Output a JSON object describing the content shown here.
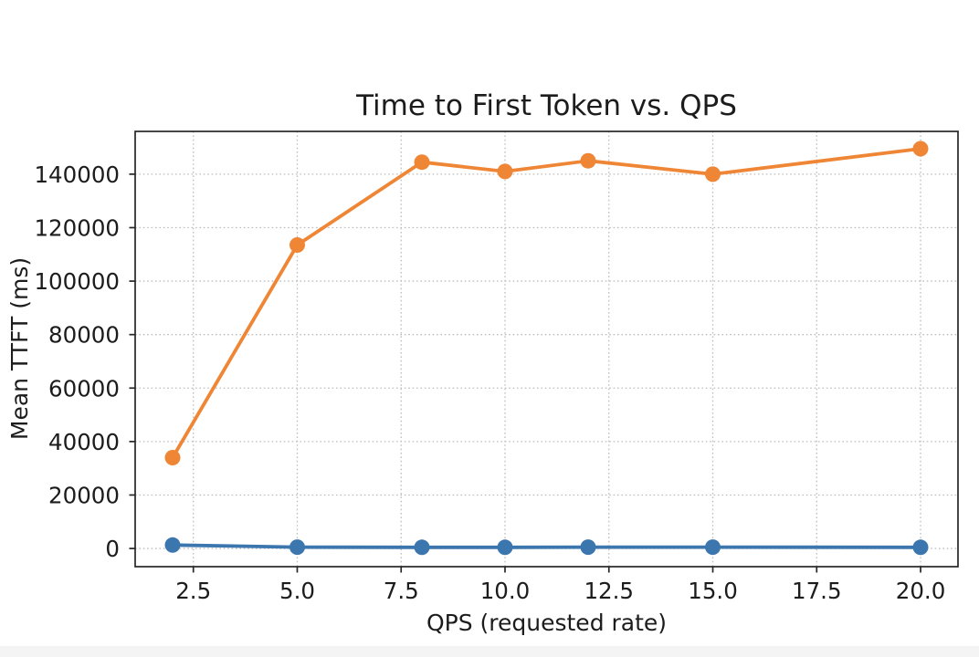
{
  "window": {
    "background": "#ffffff",
    "bottom_strip_color": "#f4f4f5"
  },
  "chart_data": {
    "type": "line",
    "title": "Time to First Token vs. QPS",
    "xlabel": "QPS (requested rate)",
    "ylabel": "Mean TTFT (ms)",
    "xlim": [
      1.1,
      20.9
    ],
    "ylim": [
      -6800,
      156000
    ],
    "grid": "dotted-both",
    "legend": "none",
    "x": [
      2,
      5,
      8,
      10,
      12,
      15,
      20
    ],
    "xticks": {
      "values": [
        2.5,
        5.0,
        7.5,
        10.0,
        12.5,
        15.0,
        17.5,
        20.0
      ],
      "labels": [
        "2.5",
        "5.0",
        "7.5",
        "10.0",
        "12.5",
        "15.0",
        "17.5",
        "20.0"
      ]
    },
    "yticks": {
      "values": [
        0,
        20000,
        40000,
        60000,
        80000,
        100000,
        120000,
        140000
      ],
      "labels": [
        "0",
        "20000",
        "40000",
        "60000",
        "80000",
        "100000",
        "120000",
        "140000"
      ]
    },
    "series": [
      {
        "name": "series-blue",
        "color": "#3b76af",
        "values": [
          1300,
          500,
          450,
          450,
          500,
          500,
          450
        ]
      },
      {
        "name": "series-orange",
        "color": "#ef8636",
        "values": [
          34000,
          113500,
          144500,
          141000,
          145000,
          140000,
          149500
        ]
      }
    ],
    "style": {
      "line_width": 3.8,
      "marker_radius": 8.5,
      "grid_color": "#bdbdbd",
      "spine_color": "#262626",
      "text_color": "#1c1c1c"
    }
  }
}
